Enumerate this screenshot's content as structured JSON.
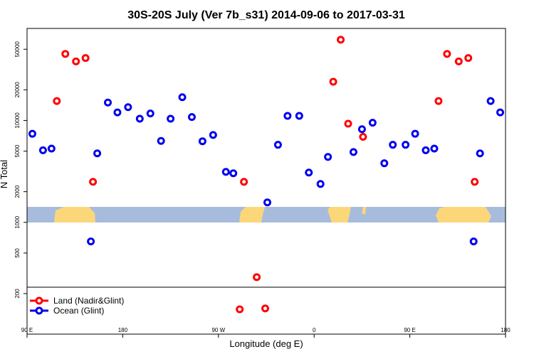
{
  "chart_data": {
    "type": "scatter",
    "title": "30S-20S July (Ver 7b_s31)   2014-09-06 to 2017-03-31",
    "x_label": "Longitude (deg E)",
    "y_label": "N Total",
    "xlim": [
      90,
      540
    ],
    "xticks": [
      {
        "value": 90,
        "label": "90 E"
      },
      180,
      {
        "value": 270,
        "label": "90 W"
      },
      {
        "value": 360,
        "label": "0"
      },
      {
        "value": 450,
        "label": "90 E"
      },
      {
        "value": 540,
        "label": "180"
      }
    ],
    "ylim": [
      80,
      80000
    ],
    "y_log": true,
    "yticks": [
      200,
      500,
      1000,
      2000,
      5000,
      10000,
      20000,
      50000
    ],
    "legend": "bottom-left",
    "series": [
      {
        "name": "Land (Nadir&Glint)",
        "color": "#ff0000",
        "x": [
          118,
          126,
          136,
          145,
          152,
          290,
          294,
          306,
          314,
          378,
          385,
          392,
          406,
          477,
          485,
          496,
          505,
          511
        ],
        "values": [
          15500,
          45000,
          38000,
          41000,
          2500,
          140,
          2500,
          290,
          143,
          24000,
          62000,
          9300,
          6900,
          15500,
          45000,
          38000,
          41000,
          2500
        ]
      },
      {
        "name": "Ocean (Glint)",
        "color": "#0000ee",
        "x": [
          95,
          105,
          113,
          150,
          156,
          166,
          175,
          185,
          196,
          206,
          216,
          225,
          236,
          245,
          255,
          265,
          277,
          284,
          316,
          326,
          335,
          346,
          355,
          366,
          373,
          397,
          405,
          415,
          426,
          434,
          446,
          455,
          465,
          473,
          510,
          516,
          526,
          535
        ],
        "values": [
          7400,
          5100,
          5300,
          650,
          4750,
          15000,
          12000,
          13500,
          10400,
          11700,
          6300,
          10400,
          16900,
          10800,
          6250,
          7200,
          3130,
          3030,
          1570,
          5770,
          11100,
          11100,
          3080,
          2380,
          4390,
          4900,
          8200,
          9500,
          3800,
          5770,
          5770,
          7400,
          5100,
          5300,
          650,
          4750,
          15500,
          12000
        ]
      }
    ]
  }
}
